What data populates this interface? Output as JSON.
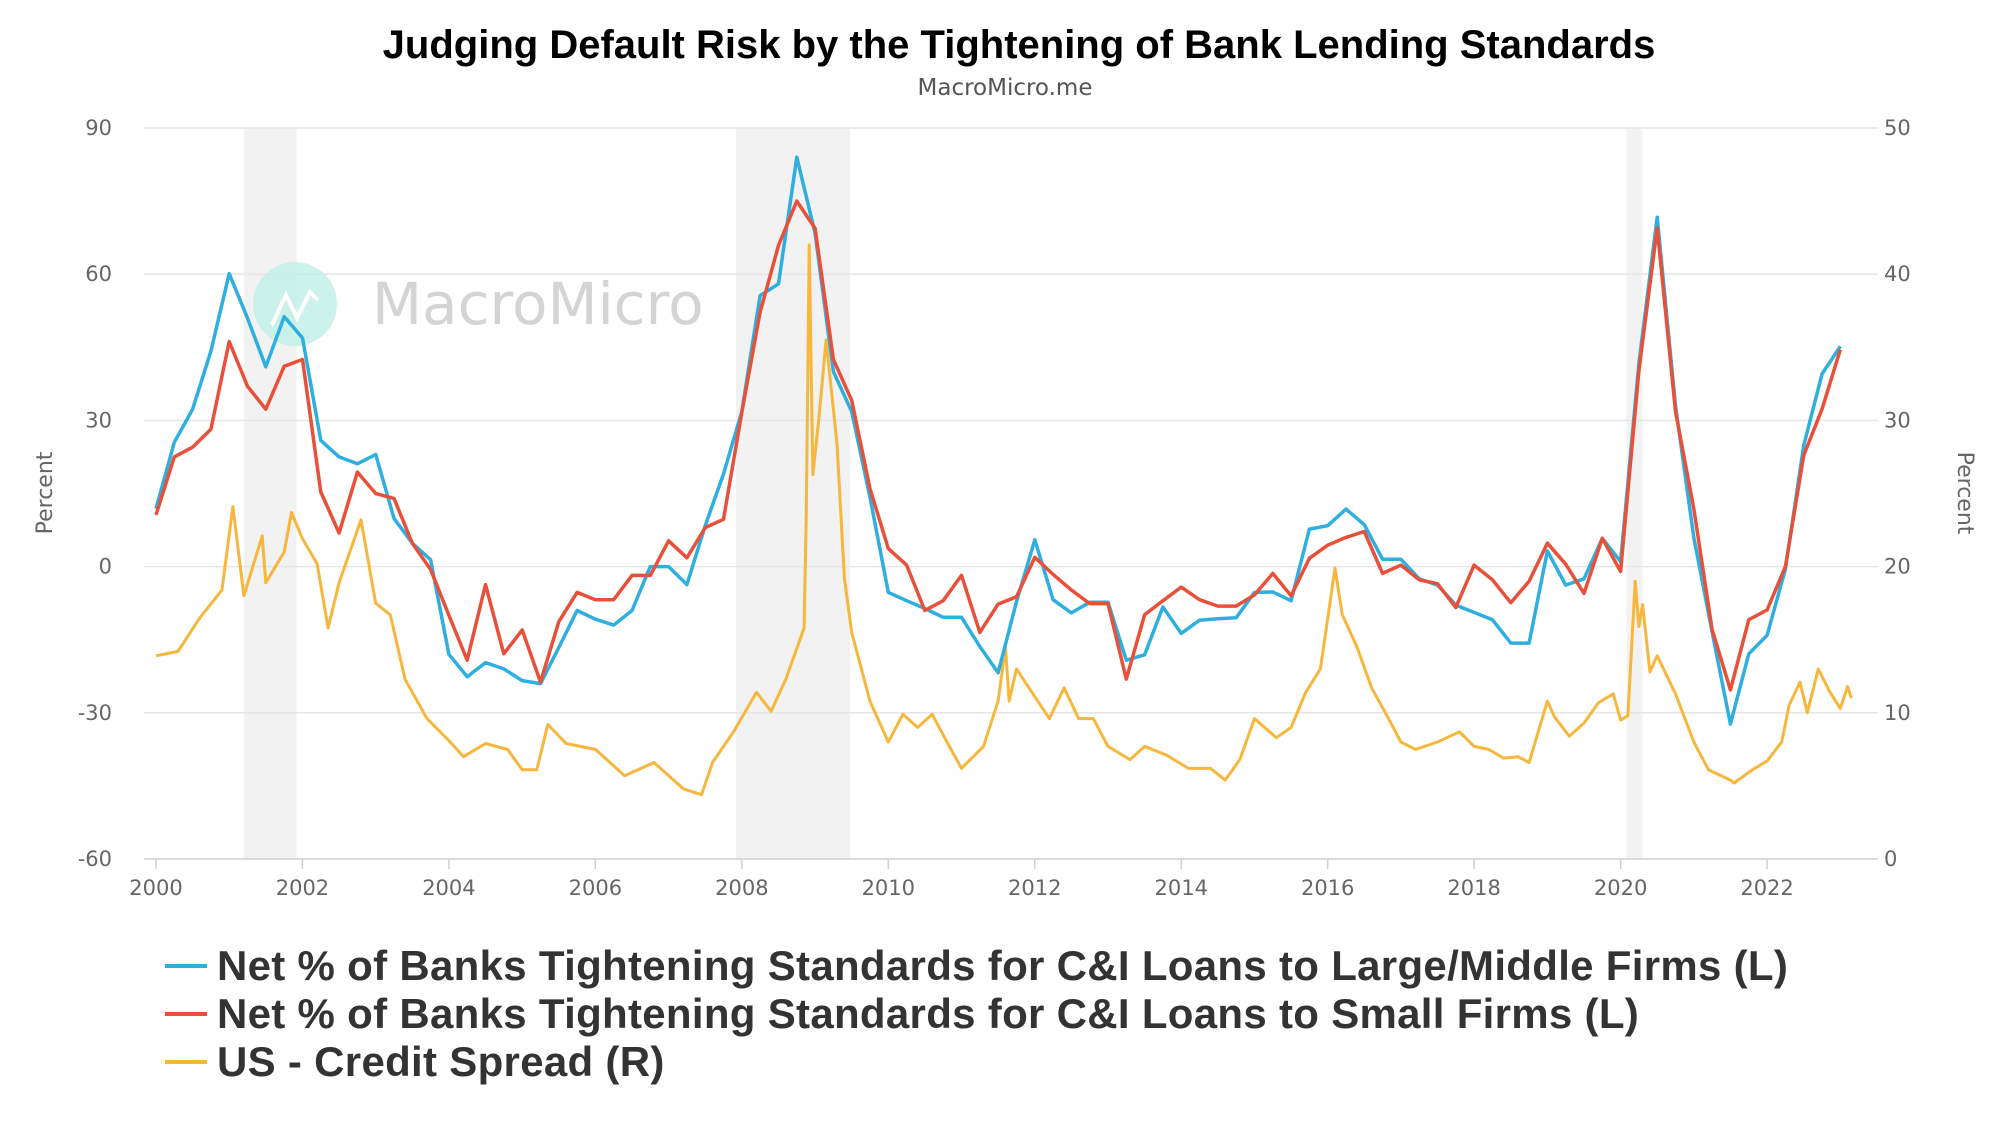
{
  "chart_data": {
    "type": "line",
    "title": "Judging Default Risk by the Tightening of Bank Lending Standards",
    "subtitle": "MacroMicro.me",
    "watermark": "MacroMicro",
    "xlabel": "",
    "ylabel_left": "Percent",
    "ylabel_right": "Percent",
    "xlim": [
      2000,
      2023.5
    ],
    "ylim_left": [
      -60,
      90
    ],
    "ylim_right": [
      0,
      50
    ],
    "x_ticks": [
      "2000",
      "2002",
      "2004",
      "2006",
      "2008",
      "2010",
      "2012",
      "2014",
      "2016",
      "2018",
      "2020",
      "2022"
    ],
    "y_ticks_left": [
      "90",
      "60",
      "30",
      "0",
      "-30",
      "-60"
    ],
    "y_ticks_right": [
      "50",
      "40",
      "30",
      "20",
      "10",
      "0"
    ],
    "grid": true,
    "legend_position": "bottom",
    "shaded_periods": [
      [
        2001.2,
        2001.92
      ],
      [
        2007.92,
        2009.48
      ],
      [
        2020.08,
        2020.3
      ]
    ],
    "quarters": [
      2000,
      2000.25,
      2000.5,
      2000.75,
      2001,
      2001.25,
      2001.5,
      2001.75,
      2002,
      2002.25,
      2002.5,
      2002.75,
      2003,
      2003.25,
      2003.5,
      2003.75,
      2004,
      2004.25,
      2004.5,
      2004.75,
      2005,
      2005.25,
      2005.5,
      2005.75,
      2006,
      2006.25,
      2006.5,
      2006.75,
      2007,
      2007.25,
      2007.5,
      2007.75,
      2008,
      2008.25,
      2008.5,
      2008.75,
      2009,
      2009.25,
      2009.5,
      2009.75,
      2010,
      2010.25,
      2010.5,
      2010.75,
      2011,
      2011.25,
      2011.5,
      2011.75,
      2012,
      2012.25,
      2012.5,
      2012.75,
      2013,
      2013.25,
      2013.5,
      2013.75,
      2014,
      2014.25,
      2014.5,
      2014.75,
      2015,
      2015.25,
      2015.5,
      2015.75,
      2016,
      2016.25,
      2016.5,
      2016.75,
      2017,
      2017.25,
      2017.5,
      2017.75,
      2018,
      2018.25,
      2018.5,
      2018.75,
      2019,
      2019.25,
      2019.5,
      2019.75,
      2020,
      2020.25,
      2020.5,
      2020.75,
      2021,
      2021.25,
      2021.5,
      2021.75,
      2022,
      2022.25,
      2022.5,
      2022.75,
      2023
    ],
    "series": [
      {
        "name": "Net % of Banks Tightening Standards for C&I Loans to Large/Middle Firms (L)",
        "axis": "left",
        "color": "#2eafe0",
        "values": [
          11.9,
          25.5,
          32.3,
          44.2,
          60.1,
          51,
          41,
          51.3,
          46.9,
          25.9,
          22.5,
          21.1,
          23,
          9.9,
          4.8,
          1.4,
          -18,
          -22.6,
          -19.7,
          -21,
          -23.4,
          -24,
          -16.6,
          -9,
          -10.8,
          -12,
          -9,
          0,
          0,
          -3.7,
          8.4,
          19,
          31.8,
          55.6,
          58,
          84,
          68.4,
          40,
          31.8,
          14.2,
          -5.3,
          -7,
          -8.6,
          -10.4,
          -10.4,
          -16.4,
          -21.8,
          -7.2,
          5.5,
          -6.8,
          -9.5,
          -7.3,
          -7.3,
          -19.2,
          -18.1,
          -8.3,
          -13.7,
          -11,
          -10.7,
          -10.5,
          -5.3,
          -5.2,
          -7,
          7.7,
          8.4,
          11.8,
          8.6,
          1.5,
          1.5,
          -2.5,
          -3.8,
          -7.9,
          -9.4,
          -10.9,
          -15.7,
          -15.7,
          3.2,
          -3.8,
          -2.5,
          5.8,
          1,
          41.7,
          71.7,
          33,
          6,
          -13.4,
          -32.3,
          -17.9,
          -14.1,
          -0.5,
          24.8,
          39.5,
          45.2
        ]
      },
      {
        "name": "Net % of Banks Tightening Standards for C&I Loans to Small Firms (L)",
        "axis": "left",
        "color": "#e8503a",
        "values": [
          10.6,
          22.5,
          24.5,
          28.2,
          46.2,
          37,
          32.3,
          41.1,
          42.5,
          15.3,
          6.9,
          19.4,
          15,
          14,
          4.8,
          -0.6,
          -10,
          -19.2,
          -3.7,
          -17.9,
          -13,
          -23.7,
          -11.3,
          -5.3,
          -6.8,
          -6.8,
          -1.8,
          -1.8,
          5.3,
          1.8,
          8,
          9.7,
          31.6,
          52.2,
          65.9,
          75,
          69.4,
          42.5,
          34.1,
          16,
          3.7,
          0.3,
          -9,
          -7,
          -1.8,
          -13.5,
          -7.7,
          -6.2,
          1.9,
          -1.6,
          -4.8,
          -7.6,
          -7.6,
          -23.1,
          -9.9,
          -7,
          -4.2,
          -6.8,
          -8.1,
          -8.1,
          -5.8,
          -1.4,
          -6,
          1.7,
          4.4,
          6,
          7.2,
          -1.4,
          0.3,
          -2.7,
          -3.5,
          -8.4,
          0.3,
          -2.7,
          -7.4,
          -3,
          4.8,
          0.5,
          -5.5,
          5.8,
          -1,
          40.2,
          69.5,
          31.8,
          11.9,
          -12.9,
          -25.3,
          -10.9,
          -8.9,
          0,
          22.8,
          32.3,
          44.5
        ]
      },
      {
        "name": "US - Credit Spread (R)",
        "axis": "right",
        "color": "#f6b73c",
        "points": [
          [
            2000,
            13.9
          ],
          [
            2000.3,
            14.2
          ],
          [
            2000.6,
            16.5
          ],
          [
            2000.9,
            18.4
          ],
          [
            2001.05,
            24.1
          ],
          [
            2001.2,
            18
          ],
          [
            2001.45,
            22.1
          ],
          [
            2001.5,
            18.9
          ],
          [
            2001.75,
            21
          ],
          [
            2001.85,
            23.7
          ],
          [
            2002,
            21.9
          ],
          [
            2002.2,
            20.2
          ],
          [
            2002.35,
            15.8
          ],
          [
            2002.5,
            18.9
          ],
          [
            2002.8,
            23.2
          ],
          [
            2003,
            17.5
          ],
          [
            2003.2,
            16.7
          ],
          [
            2003.4,
            12.3
          ],
          [
            2003.7,
            9.6
          ],
          [
            2004,
            8.1
          ],
          [
            2004.2,
            7
          ],
          [
            2004.5,
            7.9
          ],
          [
            2004.8,
            7.5
          ],
          [
            2005,
            6.1
          ],
          [
            2005.2,
            6.1
          ],
          [
            2005.35,
            9.2
          ],
          [
            2005.6,
            7.9
          ],
          [
            2006,
            7.5
          ],
          [
            2006.4,
            5.7
          ],
          [
            2006.8,
            6.6
          ],
          [
            2007.2,
            4.8
          ],
          [
            2007.45,
            4.4
          ],
          [
            2007.6,
            6.6
          ],
          [
            2007.9,
            8.8
          ],
          [
            2008.2,
            11.4
          ],
          [
            2008.4,
            10.1
          ],
          [
            2008.6,
            12.3
          ],
          [
            2008.85,
            15.8
          ],
          [
            2008.88,
            23.7
          ],
          [
            2008.92,
            42
          ],
          [
            2008.97,
            26.3
          ],
          [
            2009.05,
            30
          ],
          [
            2009.15,
            35.5
          ],
          [
            2009.3,
            28.4
          ],
          [
            2009.4,
            19.2
          ],
          [
            2009.5,
            15.5
          ],
          [
            2009.75,
            10.8
          ],
          [
            2010,
            8
          ],
          [
            2010.2,
            9.9
          ],
          [
            2010.4,
            9
          ],
          [
            2010.6,
            9.9
          ],
          [
            2010.8,
            8
          ],
          [
            2011,
            6.2
          ],
          [
            2011.3,
            7.7
          ],
          [
            2011.5,
            10.8
          ],
          [
            2011.6,
            14.5
          ],
          [
            2011.65,
            10.8
          ],
          [
            2011.75,
            13
          ],
          [
            2012,
            11.1
          ],
          [
            2012.2,
            9.6
          ],
          [
            2012.4,
            11.7
          ],
          [
            2012.6,
            9.6
          ],
          [
            2012.8,
            9.6
          ],
          [
            2013,
            7.7
          ],
          [
            2013.3,
            6.8
          ],
          [
            2013.5,
            7.7
          ],
          [
            2013.8,
            7.1
          ],
          [
            2014.1,
            6.2
          ],
          [
            2014.4,
            6.2
          ],
          [
            2014.6,
            5.4
          ],
          [
            2014.8,
            6.8
          ],
          [
            2015,
            9.6
          ],
          [
            2015.3,
            8.3
          ],
          [
            2015.5,
            9
          ],
          [
            2015.7,
            11.4
          ],
          [
            2015.9,
            13
          ],
          [
            2016.1,
            19.9
          ],
          [
            2016.2,
            16.7
          ],
          [
            2016.4,
            14.5
          ],
          [
            2016.6,
            11.7
          ],
          [
            2016.8,
            9.9
          ],
          [
            2017,
            8
          ],
          [
            2017.2,
            7.5
          ],
          [
            2017.5,
            8
          ],
          [
            2017.8,
            8.7
          ],
          [
            2018,
            7.7
          ],
          [
            2018.2,
            7.5
          ],
          [
            2018.4,
            6.9
          ],
          [
            2018.6,
            7
          ],
          [
            2018.75,
            6.6
          ],
          [
            2019,
            10.8
          ],
          [
            2019.1,
            9.7
          ],
          [
            2019.3,
            8.4
          ],
          [
            2019.5,
            9.3
          ],
          [
            2019.7,
            10.7
          ],
          [
            2019.9,
            11.3
          ],
          [
            2020,
            9.5
          ],
          [
            2020.1,
            9.8
          ],
          [
            2020.2,
            19
          ],
          [
            2020.25,
            15.9
          ],
          [
            2020.3,
            17.4
          ],
          [
            2020.4,
            12.8
          ],
          [
            2020.5,
            13.9
          ],
          [
            2020.75,
            11.3
          ],
          [
            2021,
            8
          ],
          [
            2021.2,
            6.1
          ],
          [
            2021.5,
            5.4
          ],
          [
            2021.55,
            5.2
          ],
          [
            2021.8,
            6.1
          ],
          [
            2022,
            6.7
          ],
          [
            2022.2,
            8
          ],
          [
            2022.3,
            10.5
          ],
          [
            2022.45,
            12.1
          ],
          [
            2022.55,
            10
          ],
          [
            2022.7,
            13
          ],
          [
            2022.85,
            11.5
          ],
          [
            2023,
            10.3
          ],
          [
            2023.1,
            11.8
          ],
          [
            2023.15,
            11
          ]
        ]
      }
    ]
  }
}
